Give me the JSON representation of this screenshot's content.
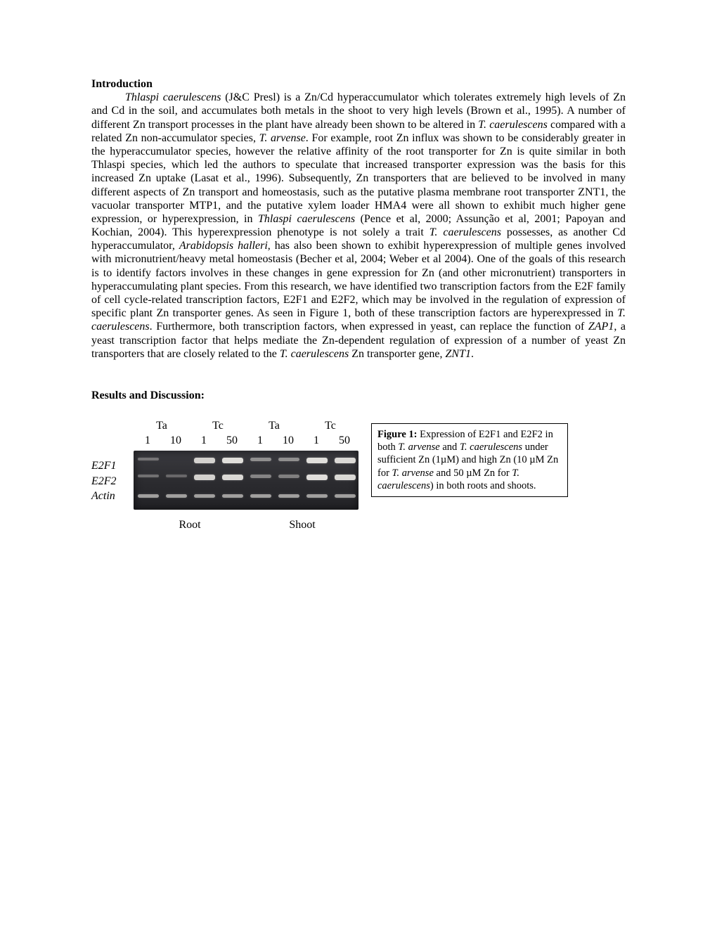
{
  "intro": {
    "heading": "Introduction",
    "paragraph_html": "<span class=\"ital\">Thlaspi caerulescens</span> (J&amp;C Presl) is a Zn/Cd hyperaccumulator which tolerates extremely high levels of Zn and Cd in the soil, and accumulates both metals in the shoot to very high levels (Brown et al., 1995). A number of different Zn transport processes in the plant have already been shown to be altered in <span class=\"ital\">T. caerulescens</span> compared with a related Zn non-accumulator species, <span class=\"ital\">T. arvense</span>. For example, root Zn influx was shown to be considerably greater in the hyperaccumulator species, however the relative affinity of the root transporter for Zn is quite similar in both Thlaspi species, which led the authors to speculate that increased transporter expression was the basis for this increased Zn uptake (Lasat et al., 1996).  Subsequently, Zn transporters that are believed to be involved in many different aspects of Zn transport and homeostasis, such as the putative plasma membrane root transporter ZNT1, the vacuolar transporter MTP1, and the putative xylem loader HMA4 were all shown to exhibit much higher gene expression, or hyperexpression, in <span class=\"ital\">Thlaspi caerulescens</span> (Pence et al, 2000; Assunção et al, 2001; Papoyan and Kochian, 2004).  This hyperexpression phenotype is not solely a trait <span class=\"ital\">T. caerulescens</span> possesses, as another Cd hyperaccumulator, <span class=\"ital\">Arabidopsis halleri</span>, has also been shown to exhibit hyperexpression of multiple genes involved with micronutrient/heavy metal homeostasis (Becher et al, 2004; Weber et al 2004).  One of the goals of this research is to identify factors involves in these changes in gene expression for Zn (and other micronutrient) transporters in hyperaccumulating plant species.  From this research, we have identified two transcription factors from the E2F family of cell cycle-related transcription factors, E2F1 and E2F2, which may be involved in the regulation of expression of specific plant Zn transporter genes. As seen in Figure 1, both of these transcription factors are hyperexpressed in <span class=\"ital\">T. caerulescens</span>. Furthermore, both transcription factors, when expressed in yeast, can replace the function of <span class=\"ital\">ZAP1</span>, a yeast transcription factor that helps mediate the Zn-dependent regulation of expression of a number of yeast Zn transporters that are closely related to the <span class=\"ital\">T. caerulescens</span> Zn transporter gene, <span class=\"ital\">ZNT1</span>."
  },
  "results": {
    "heading": "Results and Discussion:"
  },
  "figure": {
    "row_labels": [
      "E2F1",
      "E2F2",
      "Actin"
    ],
    "species": [
      "Ta",
      "Tc",
      "Ta",
      "Tc"
    ],
    "concentrations": [
      "1",
      "10",
      "1",
      "50",
      "1",
      "10",
      "1",
      "50"
    ],
    "tissues": [
      "Root",
      "Shoot"
    ],
    "caption_lead": "Figure 1:",
    "caption_html": "Expression of E2F1 and E2F2 in both <span class=\"ital\">T. arvense</span> and <span class=\"ital\">T. caerulescens</span> under sufficient Zn (1µM) and high Zn (10 µM Zn for <span class=\"ital\">T. arvense</span> and 50 µM Zn for <span class=\"ital\">T. caerulescens</span>) in both roots and shoots.",
    "gel": {
      "background": "#2c2c30",
      "band_color": "#e8e6e2",
      "lanes": [
        {
          "r1": 0.15,
          "r2": 0.15,
          "r3": 0.5
        },
        {
          "r1": 0.0,
          "r2": 0.08,
          "r3": 0.5
        },
        {
          "r1": 0.85,
          "r2": 0.85,
          "r3": 0.5
        },
        {
          "r1": 0.95,
          "r2": 0.9,
          "r3": 0.5
        },
        {
          "r1": 0.35,
          "r2": 0.3,
          "r3": 0.5
        },
        {
          "r1": 0.35,
          "r2": 0.25,
          "r3": 0.5
        },
        {
          "r1": 0.95,
          "r2": 0.95,
          "r3": 0.5
        },
        {
          "r1": 0.9,
          "r2": 0.9,
          "r3": 0.5
        }
      ]
    }
  }
}
